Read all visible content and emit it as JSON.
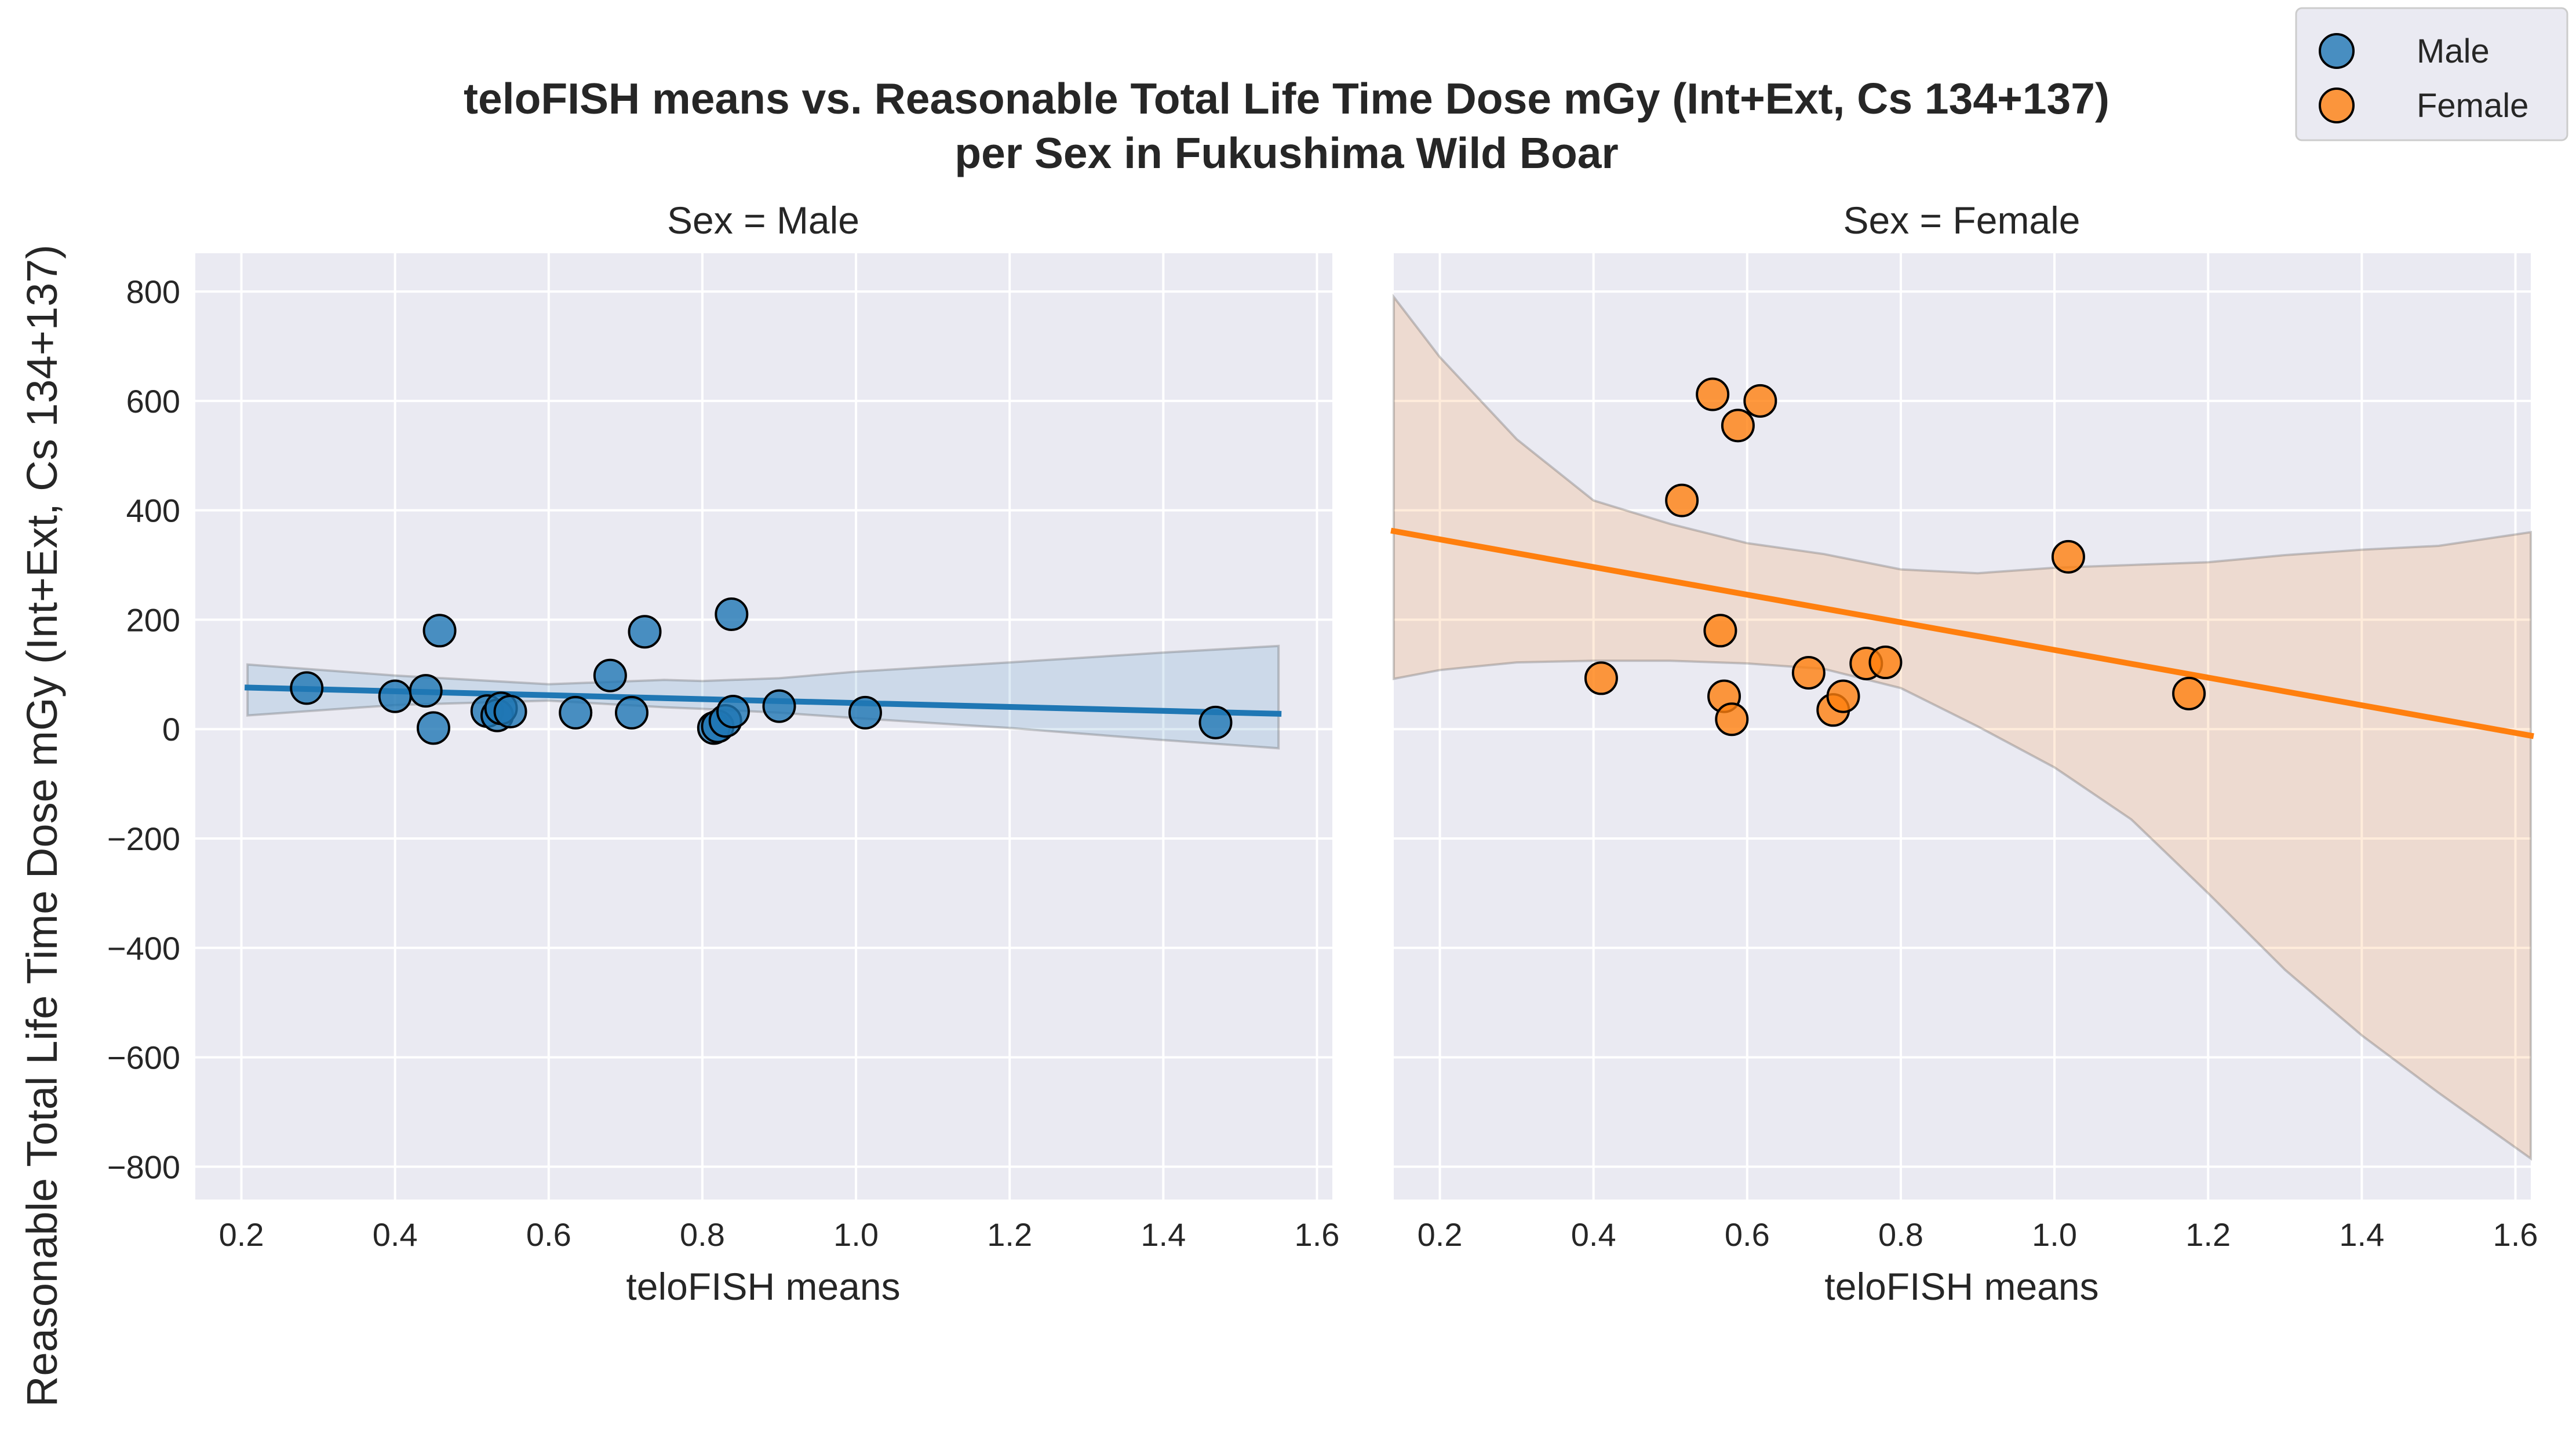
{
  "figure": {
    "title_line1": "teloFISH means vs. Reasonable Total Life Time Dose mGy (Int+Ext, Cs 134+137)",
    "title_line2": "per Sex in Fukushima Wild Boar",
    "ylabel": "Reasonable Total Life Time Dose mGy (Int+Ext, Cs 134+137)"
  },
  "legend": {
    "placement": "top-right",
    "entries": [
      {
        "label": "Male",
        "color": "#1f77b4"
      },
      {
        "label": "Female",
        "color": "#ff7f0e"
      }
    ]
  },
  "colors": {
    "axes_background": "#eaeaf2",
    "grid": "#ffffff",
    "male": "#1f77b4",
    "female": "#ff7f0e"
  },
  "chart_data": [
    {
      "type": "scatter",
      "title": "Sex = Male",
      "xlabel": "teloFISH means",
      "ylabel": "Reasonable Total Life Time Dose mGy (Int+Ext, Cs 134+137)",
      "xlim": [
        0.14,
        1.62
      ],
      "ylim": [
        -860,
        870
      ],
      "xticks": [
        0.2,
        0.4,
        0.6,
        0.8,
        1.0,
        1.2,
        1.4,
        1.6
      ],
      "xtick_labels": [
        "0.2",
        "0.4",
        "0.6",
        "0.8",
        "1.0",
        "1.2",
        "1.4",
        "1.6"
      ],
      "yticks": [
        -800,
        -600,
        -400,
        -200,
        0,
        200,
        400,
        600,
        800
      ],
      "ytick_labels": [
        "−800",
        "−600",
        "−400",
        "−200",
        "0",
        "200",
        "400",
        "600",
        "800"
      ],
      "grid": true,
      "series": [
        {
          "name": "Male",
          "color": "#1f77b4",
          "points": [
            [
              0.285,
              75
            ],
            [
              0.4,
              60
            ],
            [
              0.44,
              70
            ],
            [
              0.45,
              2
            ],
            [
              0.458,
              180
            ],
            [
              0.52,
              33
            ],
            [
              0.533,
              25
            ],
            [
              0.538,
              38
            ],
            [
              0.55,
              32
            ],
            [
              0.635,
              30
            ],
            [
              0.68,
              98
            ],
            [
              0.708,
              30
            ],
            [
              0.725,
              178
            ],
            [
              0.815,
              2
            ],
            [
              0.82,
              5
            ],
            [
              0.83,
              15
            ],
            [
              0.838,
              210
            ],
            [
              0.84,
              32
            ],
            [
              0.9,
              42
            ],
            [
              1.012,
              30
            ],
            [
              1.468,
              12
            ]
          ],
          "regression": {
            "x": [
              0.208,
              1.55
            ],
            "y": [
              76,
              28
            ]
          },
          "ci_band": {
            "x": [
              0.208,
              0.4,
              0.6,
              0.75,
              0.8,
              0.9,
              1.0,
              1.2,
              1.4,
              1.55
            ],
            "upper": [
              118,
              98,
              82,
              90,
              88,
              93,
              105,
              122,
              140,
              152
            ],
            "lower": [
              25,
              44,
              52,
              40,
              37,
              30,
              20,
              2,
              -20,
              -35
            ]
          }
        }
      ]
    },
    {
      "type": "scatter",
      "title": "Sex = Female",
      "xlabel": "teloFISH means",
      "xlim": [
        0.14,
        1.62
      ],
      "ylim": [
        -860,
        870
      ],
      "xticks": [
        0.2,
        0.4,
        0.6,
        0.8,
        1.0,
        1.2,
        1.4,
        1.6
      ],
      "xtick_labels": [
        "0.2",
        "0.4",
        "0.6",
        "0.8",
        "1.0",
        "1.2",
        "1.4",
        "1.6"
      ],
      "grid": true,
      "series": [
        {
          "name": "Female",
          "color": "#ff7f0e",
          "points": [
            [
              0.41,
              93
            ],
            [
              0.515,
              418
            ],
            [
              0.555,
              612
            ],
            [
              0.565,
              180
            ],
            [
              0.57,
              60
            ],
            [
              0.58,
              18
            ],
            [
              0.588,
              555
            ],
            [
              0.617,
              600
            ],
            [
              0.68,
              103
            ],
            [
              0.712,
              35
            ],
            [
              0.725,
              60
            ],
            [
              0.755,
              120
            ],
            [
              0.78,
              122
            ],
            [
              1.018,
              315
            ],
            [
              1.175,
              65
            ]
          ],
          "regression": {
            "x": [
              0.14,
              1.62
            ],
            "y": [
              362,
              -12
            ]
          },
          "ci_band": {
            "x": [
              0.14,
              0.2,
              0.3,
              0.4,
              0.5,
              0.6,
              0.7,
              0.8,
              0.9,
              1.0,
              1.1,
              1.2,
              1.3,
              1.4,
              1.5,
              1.62
            ],
            "upper": [
              790,
              680,
              530,
              418,
              375,
              340,
              320,
              292,
              285,
              295,
              300,
              305,
              318,
              328,
              335,
              360
            ],
            "lower": [
              92,
              108,
              122,
              125,
              125,
              120,
              110,
              75,
              5,
              -70,
              -165,
              -300,
              -440,
              -560,
              -665,
              -785
            ]
          }
        }
      ]
    }
  ]
}
